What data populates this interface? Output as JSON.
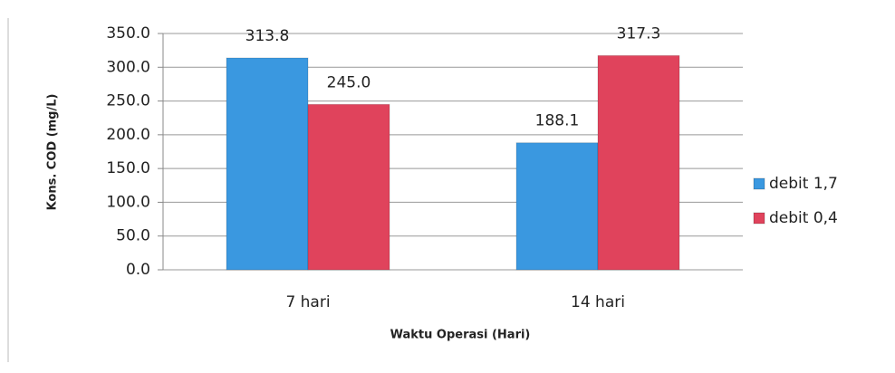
{
  "chart_data": {
    "type": "bar",
    "x_label": "Waktu Operasi (Hari)",
    "y_label": "Kons. COD (mg/L)",
    "categories": [
      "7 hari",
      "14 hari"
    ],
    "series": [
      {
        "name": "debit 1,7",
        "color": "#3a98e0",
        "values": [
          313.8,
          188.1
        ],
        "value_labels": [
          "313.8",
          "188.1"
        ]
      },
      {
        "name": "debit 0,4",
        "color": "#e0435c",
        "values": [
          245,
          317.3
        ],
        "value_labels": [
          "245.0",
          "317.3"
        ]
      }
    ],
    "ylim": [
      0,
      350
    ],
    "yticks": [
      {
        "value": 0,
        "label": "0.0"
      },
      {
        "value": 50,
        "label": "50.0"
      },
      {
        "value": 100,
        "label": "100.0"
      },
      {
        "value": 150,
        "label": "150.0"
      },
      {
        "value": 200,
        "label": "200.0"
      },
      {
        "value": 250,
        "label": "250.0"
      },
      {
        "value": 300,
        "label": "300.0"
      },
      {
        "value": 350,
        "label": "350.0"
      }
    ],
    "grid": true,
    "legend": "right"
  }
}
